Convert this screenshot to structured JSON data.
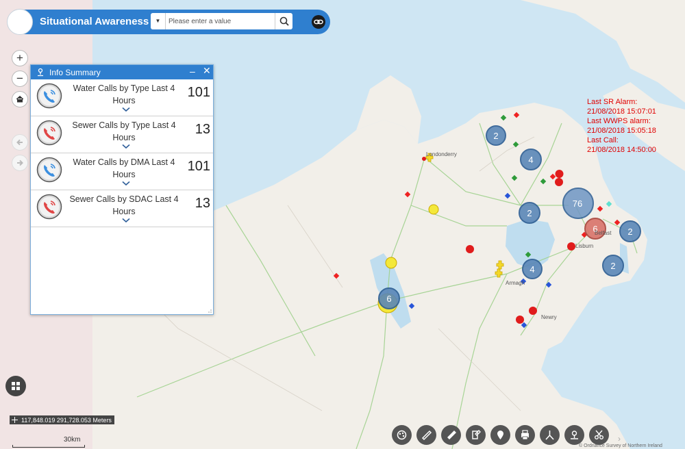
{
  "header": {
    "title": "Situational Awareness",
    "search_placeholder": "Please enter a value"
  },
  "nav": {
    "zoom_in": "+",
    "zoom_out": "−"
  },
  "panel": {
    "title": "Info Summary",
    "rows": [
      {
        "label": "Water Calls by Type Last 4 Hours",
        "value": "101",
        "type": "water"
      },
      {
        "label": "Sewer Calls by Type Last 4 Hours",
        "value": "13",
        "type": "sewer"
      },
      {
        "label": "Water Calls by DMA Last 4 Hours",
        "value": "101",
        "type": "water"
      },
      {
        "label": "Sewer Calls by SDAC Last 4 Hours",
        "value": "13",
        "type": "sewer"
      }
    ]
  },
  "alarms": {
    "line1": "Last SR Alarm:",
    "line2": "21/08/2018 15:07:01",
    "line3": "Last WWPS alarm:",
    "line4": "21/08/2018 15:05:18",
    "line5": "Last Call:",
    "line6": "21/08/2018 14:50:00"
  },
  "place_labels": [
    "Londonderry",
    "Belfast",
    "Lisburn",
    "Armagh",
    "Newry"
  ],
  "clusters": [
    "2",
    "4",
    "76",
    "2",
    "6",
    "2",
    "4",
    "2",
    "6"
  ],
  "coordinates": "117,848.019 291,728.053 Meters",
  "scale": "30km",
  "attribution": "© Ordnance Survey of Northern Ireland",
  "colors": {
    "header": "#2f7fcf",
    "cluster_blue": "#5b87b8",
    "cluster_red": "#d9736a",
    "alarm_text": "#e00000",
    "water_phone": "#3b8fe0",
    "sewer_phone": "#e04646"
  },
  "toolbar": [
    "palette-icon",
    "measure-icon",
    "draw-icon",
    "edit-icon",
    "marker-icon",
    "print-icon",
    "directions-icon",
    "locate-icon",
    "scissors-icon"
  ]
}
